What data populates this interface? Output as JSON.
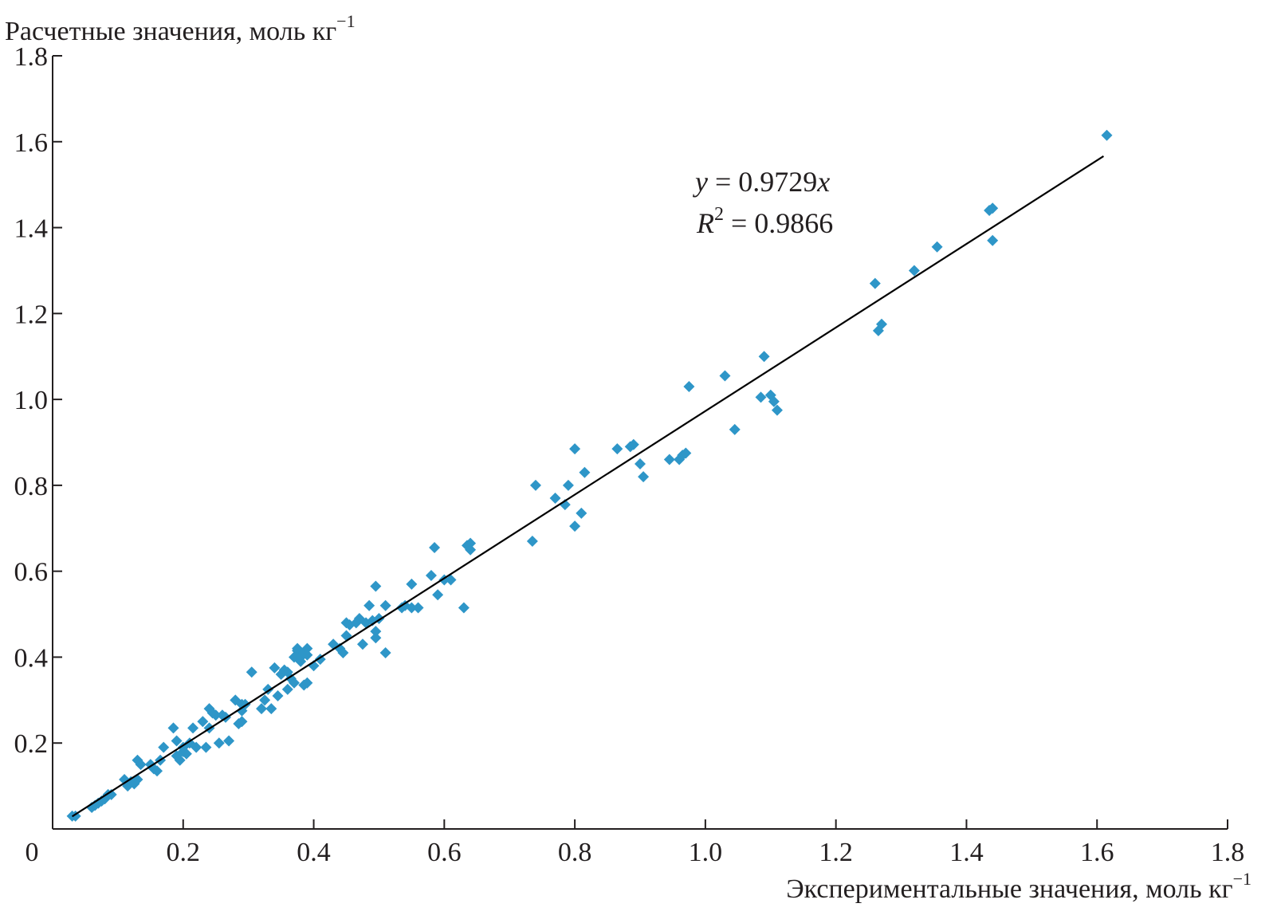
{
  "chart_data": {
    "type": "scatter",
    "title": "",
    "xlabel": "Экспериментальные значения, моль кг",
    "xlabel_sup": "−1",
    "ylabel": "Расчетные значения, моль кг",
    "ylabel_sup": "−1",
    "xlim": [
      0,
      1.8
    ],
    "ylim": [
      0,
      1.8
    ],
    "x_ticks": [
      "0.2",
      "0.4",
      "0.6",
      "0.8",
      "1.0",
      "1.2",
      "1.4",
      "1.6",
      "1.8"
    ],
    "y_ticks": [
      "0.2",
      "0.4",
      "0.6",
      "0.8",
      "1.0",
      "1.2",
      "1.4",
      "1.6",
      "1.8"
    ],
    "origin_label": "0",
    "grid": false,
    "marker_color": "#2e96c8",
    "line_color": "#000000",
    "trendline": {
      "slope": 0.9729,
      "x_start": 0.03,
      "x_end": 1.61,
      "equation_var": "y",
      "equation_rest": " = 0.9729",
      "equation_x": "x",
      "r2_var": "R",
      "r2_sup": "2",
      "r2_rest": " = 0.9866"
    },
    "points": [
      [
        0.03,
        0.03
      ],
      [
        0.035,
        0.03
      ],
      [
        0.06,
        0.05
      ],
      [
        0.065,
        0.055
      ],
      [
        0.07,
        0.06
      ],
      [
        0.075,
        0.065
      ],
      [
        0.08,
        0.07
      ],
      [
        0.085,
        0.08
      ],
      [
        0.09,
        0.08
      ],
      [
        0.11,
        0.115
      ],
      [
        0.115,
        0.1
      ],
      [
        0.12,
        0.11
      ],
      [
        0.125,
        0.105
      ],
      [
        0.13,
        0.16
      ],
      [
        0.135,
        0.15
      ],
      [
        0.13,
        0.115
      ],
      [
        0.15,
        0.15
      ],
      [
        0.155,
        0.14
      ],
      [
        0.16,
        0.135
      ],
      [
        0.165,
        0.16
      ],
      [
        0.17,
        0.19
      ],
      [
        0.185,
        0.235
      ],
      [
        0.19,
        0.17
      ],
      [
        0.19,
        0.205
      ],
      [
        0.195,
        0.16
      ],
      [
        0.2,
        0.18
      ],
      [
        0.205,
        0.175
      ],
      [
        0.21,
        0.2
      ],
      [
        0.2,
        0.19
      ],
      [
        0.215,
        0.235
      ],
      [
        0.22,
        0.19
      ],
      [
        0.23,
        0.25
      ],
      [
        0.235,
        0.19
      ],
      [
        0.24,
        0.28
      ],
      [
        0.24,
        0.235
      ],
      [
        0.245,
        0.27
      ],
      [
        0.25,
        0.265
      ],
      [
        0.255,
        0.2
      ],
      [
        0.26,
        0.265
      ],
      [
        0.265,
        0.26
      ],
      [
        0.27,
        0.205
      ],
      [
        0.28,
        0.3
      ],
      [
        0.285,
        0.245
      ],
      [
        0.29,
        0.25
      ],
      [
        0.29,
        0.275
      ],
      [
        0.295,
        0.29
      ],
      [
        0.29,
        0.29
      ],
      [
        0.305,
        0.365
      ],
      [
        0.32,
        0.28
      ],
      [
        0.325,
        0.3
      ],
      [
        0.33,
        0.325
      ],
      [
        0.335,
        0.28
      ],
      [
        0.34,
        0.375
      ],
      [
        0.345,
        0.31
      ],
      [
        0.35,
        0.36
      ],
      [
        0.355,
        0.37
      ],
      [
        0.36,
        0.325
      ],
      [
        0.36,
        0.365
      ],
      [
        0.365,
        0.35
      ],
      [
        0.37,
        0.34
      ],
      [
        0.37,
        0.4
      ],
      [
        0.375,
        0.415
      ],
      [
        0.375,
        0.42
      ],
      [
        0.38,
        0.4
      ],
      [
        0.38,
        0.39
      ],
      [
        0.385,
        0.41
      ],
      [
        0.385,
        0.335
      ],
      [
        0.39,
        0.34
      ],
      [
        0.39,
        0.42
      ],
      [
        0.39,
        0.405
      ],
      [
        0.4,
        0.38
      ],
      [
        0.41,
        0.395
      ],
      [
        0.43,
        0.43
      ],
      [
        0.44,
        0.42
      ],
      [
        0.445,
        0.41
      ],
      [
        0.45,
        0.45
      ],
      [
        0.45,
        0.48
      ],
      [
        0.455,
        0.475
      ],
      [
        0.465,
        0.48
      ],
      [
        0.47,
        0.49
      ],
      [
        0.475,
        0.43
      ],
      [
        0.48,
        0.48
      ],
      [
        0.485,
        0.52
      ],
      [
        0.49,
        0.485
      ],
      [
        0.495,
        0.565
      ],
      [
        0.495,
        0.46
      ],
      [
        0.495,
        0.445
      ],
      [
        0.5,
        0.49
      ],
      [
        0.51,
        0.52
      ],
      [
        0.51,
        0.41
      ],
      [
        0.535,
        0.515
      ],
      [
        0.54,
        0.52
      ],
      [
        0.55,
        0.515
      ],
      [
        0.55,
        0.57
      ],
      [
        0.56,
        0.515
      ],
      [
        0.58,
        0.59
      ],
      [
        0.585,
        0.655
      ],
      [
        0.59,
        0.545
      ],
      [
        0.6,
        0.58
      ],
      [
        0.61,
        0.58
      ],
      [
        0.63,
        0.515
      ],
      [
        0.635,
        0.66
      ],
      [
        0.64,
        0.665
      ],
      [
        0.64,
        0.65
      ],
      [
        0.735,
        0.67
      ],
      [
        0.74,
        0.8
      ],
      [
        0.77,
        0.77
      ],
      [
        0.785,
        0.755
      ],
      [
        0.79,
        0.8
      ],
      [
        0.8,
        0.885
      ],
      [
        0.8,
        0.705
      ],
      [
        0.81,
        0.735
      ],
      [
        0.815,
        0.83
      ],
      [
        0.865,
        0.885
      ],
      [
        0.885,
        0.89
      ],
      [
        0.89,
        0.895
      ],
      [
        0.9,
        0.85
      ],
      [
        0.905,
        0.82
      ],
      [
        0.945,
        0.86
      ],
      [
        0.96,
        0.86
      ],
      [
        0.965,
        0.87
      ],
      [
        0.97,
        0.875
      ],
      [
        0.975,
        1.03
      ],
      [
        1.03,
        1.055
      ],
      [
        1.045,
        0.93
      ],
      [
        1.085,
        1.005
      ],
      [
        1.09,
        1.1
      ],
      [
        1.1,
        1.01
      ],
      [
        1.105,
        0.995
      ],
      [
        1.11,
        0.975
      ],
      [
        1.26,
        1.27
      ],
      [
        1.265,
        1.16
      ],
      [
        1.27,
        1.175
      ],
      [
        1.32,
        1.3
      ],
      [
        1.355,
        1.355
      ],
      [
        1.435,
        1.44
      ],
      [
        1.44,
        1.445
      ],
      [
        1.44,
        1.37
      ],
      [
        1.615,
        1.615
      ]
    ]
  }
}
